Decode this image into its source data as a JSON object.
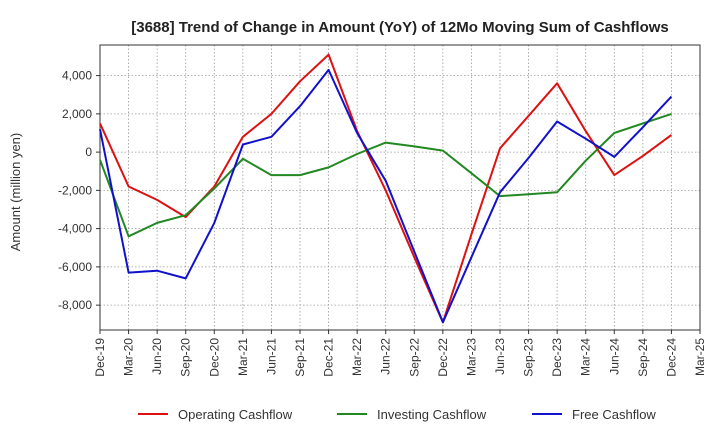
{
  "chart_data": {
    "type": "line",
    "title": "[3688]  Trend of Change in Amount (YoY) of 12Mo Moving Sum of Cashflows",
    "xlabel": "",
    "ylabel": "Amount (million yen)",
    "ylim": [
      -9300,
      5600
    ],
    "yticks": [
      4000,
      2000,
      0,
      -2000,
      -4000,
      -6000,
      -8000
    ],
    "ytick_labels": [
      "4,000",
      "2,000",
      "0",
      "-2,000",
      "-4,000",
      "-6,000",
      "-8,000"
    ],
    "categories": [
      "Dec-19",
      "Mar-20",
      "Jun-20",
      "Sep-20",
      "Dec-20",
      "Mar-21",
      "Jun-21",
      "Sep-21",
      "Dec-21",
      "Mar-22",
      "Jun-22",
      "Sep-22",
      "Dec-22",
      "Mar-23",
      "Jun-23",
      "Sep-23",
      "Dec-23",
      "Mar-24",
      "Jun-24",
      "Sep-24",
      "Dec-24",
      "Mar-25"
    ],
    "grid": true,
    "legend_position": "bottom",
    "series": [
      {
        "name": "Operating Cashflow",
        "color": "#dd1111",
        "values": [
          1500,
          -1800,
          -2500,
          -3400,
          -1800,
          800,
          2000,
          3700,
          5100,
          1100,
          -2000,
          -5500,
          -8900,
          -4300,
          200,
          1900,
          3600,
          1100,
          -1200,
          -200,
          900,
          null
        ]
      },
      {
        "name": "Investing Cashflow",
        "color": "#228822",
        "values": [
          -400,
          -4400,
          -3700,
          -3300,
          -1900,
          -350,
          -1200,
          -1200,
          -800,
          -100,
          500,
          300,
          80,
          -1100,
          -2300,
          -2200,
          -2100,
          -450,
          1000,
          1500,
          2000,
          null
        ]
      },
      {
        "name": "Free Cashflow",
        "color": "#1111cc",
        "values": [
          1200,
          -6300,
          -6200,
          -6600,
          -3700,
          400,
          800,
          2400,
          4300,
          1000,
          -1500,
          -5200,
          -8900,
          -5500,
          -2100,
          -300,
          1600,
          700,
          -250,
          1300,
          2900,
          null
        ]
      }
    ]
  }
}
